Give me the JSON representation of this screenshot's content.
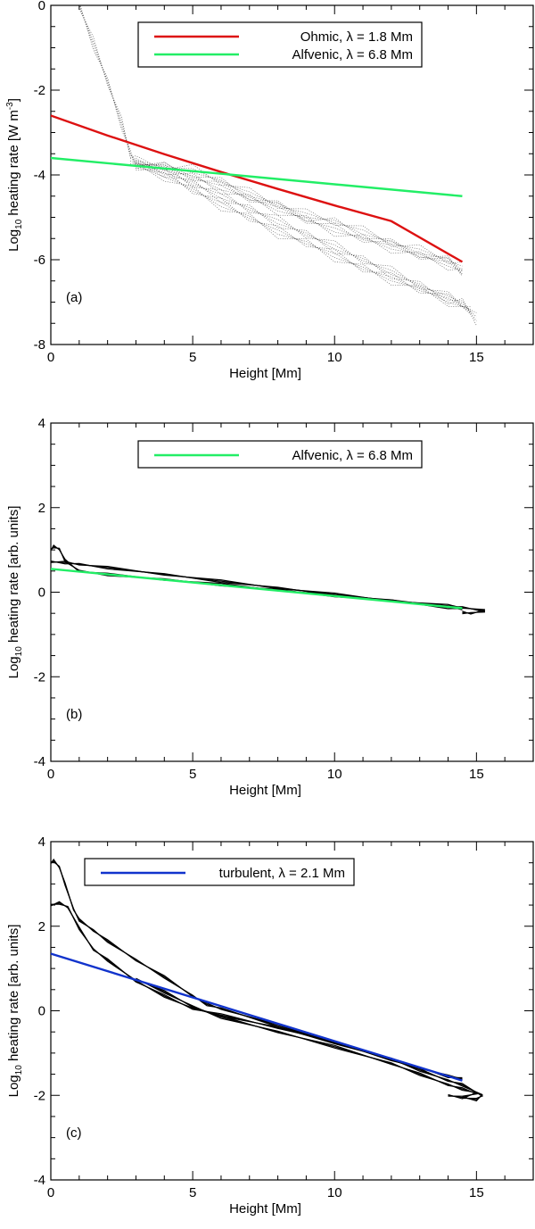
{
  "chart_data": [
    {
      "id": "a",
      "type": "line",
      "panel_label": "(a)",
      "xlabel": "Height [Mm]",
      "ylabel": "Log10 heating rate [W m-3]",
      "ylabel_parts": {
        "pre": "Log",
        "sub": "10",
        "mid": " heating rate [W m",
        "sup": "-3",
        "post": "]"
      },
      "xlim": [
        0,
        17
      ],
      "ylim": [
        -8,
        0
      ],
      "xticks": [
        0,
        5,
        10,
        15
      ],
      "yticks": [
        -8,
        -6,
        -4,
        -2,
        0
      ],
      "legend_position": "top-center",
      "series": [
        {
          "name": "Ohmic, λ = 1.8 Mm",
          "color": "#dd1111",
          "x": [
            0,
            2,
            4,
            6,
            8,
            10,
            12,
            14.5
          ],
          "y": [
            -2.6,
            -3.07,
            -3.51,
            -3.93,
            -4.33,
            -4.72,
            -5.09,
            -6.05
          ]
        },
        {
          "name": "Alfvenic, λ = 6.8 Mm",
          "color": "#22ee66",
          "x": [
            0,
            14.5
          ],
          "y": [
            -3.6,
            -4.5
          ]
        }
      ],
      "scatter_curves": [
        {
          "style": "dotted",
          "x": [
            1.0,
            1.5,
            2.0,
            2.5,
            2.8,
            3.0,
            4.0,
            5.0,
            6.0,
            7.0,
            8.0,
            9.0,
            10.0,
            11.0,
            12.0,
            13.0,
            14.0,
            14.5
          ],
          "y": [
            0,
            -0.9,
            -1.8,
            -2.8,
            -3.5,
            -3.7,
            -3.8,
            -3.9,
            -4.15,
            -4.45,
            -4.7,
            -4.95,
            -5.1,
            -5.35,
            -5.6,
            -5.8,
            -6.0,
            -6.2
          ]
        },
        {
          "style": "dotted",
          "x": [
            2.8,
            4.0,
            5.0,
            6.0,
            7.0,
            8.0,
            9.0,
            10.0,
            11.0,
            12.0,
            13.0,
            14.0,
            14.5,
            15.0
          ],
          "y": [
            -3.7,
            -3.9,
            -4.2,
            -4.5,
            -4.8,
            -5.1,
            -5.4,
            -5.7,
            -6.0,
            -6.3,
            -6.6,
            -6.9,
            -7.0,
            -7.4
          ]
        },
        {
          "style": "dotted",
          "x": [
            3.0,
            4.0,
            5.0,
            6.0,
            7.0,
            8.0,
            9.0,
            10.0,
            11.0,
            12.0,
            13.0,
            14.0,
            14.8
          ],
          "y": [
            -3.8,
            -4.0,
            -4.35,
            -4.7,
            -5.0,
            -5.35,
            -5.6,
            -5.9,
            -6.2,
            -6.45,
            -6.7,
            -6.95,
            -7.2
          ]
        },
        {
          "style": "dotted",
          "x": [
            3.0,
            4.0,
            5.0,
            6.0,
            7.0,
            8.0,
            9.0,
            10.0,
            11.0,
            12.0,
            13.0,
            14.0,
            14.5
          ],
          "y": [
            -3.7,
            -3.85,
            -4.05,
            -4.3,
            -4.55,
            -4.8,
            -5.05,
            -5.3,
            -5.5,
            -5.7,
            -5.9,
            -6.1,
            -6.3
          ]
        }
      ]
    },
    {
      "id": "b",
      "type": "line",
      "panel_label": "(b)",
      "xlabel": "Height [Mm]",
      "ylabel": "Log10 heating rate [arb. units]",
      "ylabel_parts": {
        "pre": "Log",
        "sub": "10",
        "mid": " heating rate [arb. units]",
        "sup": "",
        "post": ""
      },
      "xlim": [
        0,
        17
      ],
      "ylim": [
        -4,
        4
      ],
      "xticks": [
        0,
        5,
        10,
        15
      ],
      "yticks": [
        -4,
        -2,
        0,
        2,
        4
      ],
      "legend_position": "top-center",
      "series": [
        {
          "name": "Alfvenic, λ = 6.8 Mm",
          "color": "#22ee66",
          "x": [
            0,
            14.5
          ],
          "y": [
            0.55,
            -0.38
          ]
        }
      ],
      "scatter_curves": [
        {
          "style": "solid",
          "x": [
            0.0,
            0.1,
            0.3,
            0.5,
            1.0,
            2.0,
            4.0,
            6.0,
            8.0,
            10.0,
            12.0,
            14.0,
            14.5,
            15.3,
            14.8,
            14.5
          ],
          "y": [
            1.0,
            1.08,
            1.02,
            0.75,
            0.5,
            0.42,
            0.3,
            0.18,
            0.05,
            -0.08,
            -0.2,
            -0.32,
            -0.36,
            -0.44,
            -0.5,
            -0.48
          ]
        },
        {
          "style": "solid",
          "x": [
            0.0,
            0.5,
            1.0,
            2.0,
            4.0,
            6.0,
            8.0,
            10.0,
            12.0,
            14.0,
            14.5
          ],
          "y": [
            0.72,
            0.7,
            0.66,
            0.58,
            0.42,
            0.26,
            0.1,
            -0.05,
            -0.2,
            -0.36,
            -0.4
          ]
        }
      ]
    },
    {
      "id": "c",
      "type": "line",
      "panel_label": "(c)",
      "xlabel": "Height [Mm]",
      "ylabel": "Log10 heating rate [arb. units]",
      "ylabel_parts": {
        "pre": "Log",
        "sub": "10",
        "mid": " heating rate [arb. units]",
        "sup": "",
        "post": ""
      },
      "xlim": [
        0,
        17
      ],
      "ylim": [
        -4,
        4
      ],
      "xticks": [
        0,
        5,
        10,
        15
      ],
      "yticks": [
        -4,
        -2,
        0,
        2,
        4
      ],
      "legend_position": "top-center",
      "series": [
        {
          "name": "turbulent, λ = 2.1 Mm",
          "color": "#1133cc",
          "x": [
            0,
            14.5
          ],
          "y": [
            1.35,
            -1.65
          ]
        }
      ],
      "scatter_curves": [
        {
          "style": "solid",
          "x": [
            0.0,
            0.1,
            0.3,
            0.5,
            0.8,
            1.0,
            1.5,
            2.0,
            3.0,
            4.0,
            5.0,
            5.5,
            6.0,
            8.0,
            10.0,
            12.0,
            13.0,
            14.0,
            14.5
          ],
          "y": [
            3.5,
            3.55,
            3.4,
            3.0,
            2.4,
            2.15,
            1.9,
            1.65,
            1.2,
            0.8,
            0.35,
            0.15,
            0.05,
            -0.35,
            -0.75,
            -1.15,
            -1.35,
            -1.55,
            -1.6
          ]
        },
        {
          "style": "solid",
          "x": [
            0.0,
            0.3,
            0.6,
            1.0,
            1.5,
            2.0,
            3.0,
            4.0,
            5.0,
            6.0,
            8.0,
            10.0,
            12.0,
            13.0,
            14.0,
            14.5,
            15.2,
            15.0,
            14.5
          ],
          "y": [
            2.5,
            2.55,
            2.45,
            1.95,
            1.45,
            1.2,
            0.7,
            0.35,
            0.05,
            -0.1,
            -0.4,
            -0.75,
            -1.15,
            -1.4,
            -1.65,
            -1.75,
            -2.0,
            -2.1,
            -2.05
          ]
        },
        {
          "style": "solid",
          "x": [
            3.0,
            4.0,
            5.0,
            6.0,
            8.0,
            10.0,
            12.0,
            13.0,
            14.0,
            14.5,
            15.0,
            14.5,
            14.0
          ],
          "y": [
            0.75,
            0.45,
            0.1,
            -0.15,
            -0.5,
            -0.85,
            -1.25,
            -1.5,
            -1.75,
            -1.85,
            -1.95,
            -2.05,
            -2.0
          ]
        }
      ]
    }
  ]
}
